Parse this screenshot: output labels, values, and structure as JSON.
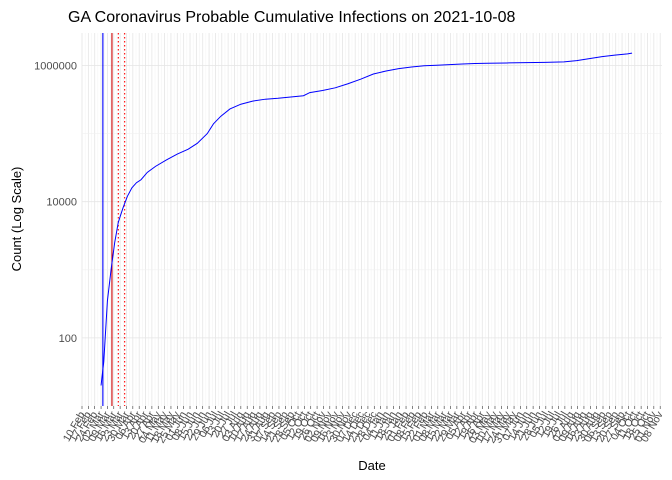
{
  "chart_data": {
    "type": "line",
    "title": "GA Coronavirus Probable Cumulative Infections on 2021-10-08",
    "xlabel": "Date",
    "ylabel": "Count (Log Scale)",
    "y_scale": "log10",
    "y_ticks": [
      100,
      10000,
      1000000
    ],
    "y_tick_labels": [
      "100",
      "10000",
      "1000000"
    ],
    "ylim": [
      10,
      3000000
    ],
    "xlim": [
      "2020-02-10",
      "2021-11-10"
    ],
    "x_ticks": [
      "2020-02-10",
      "2020-02-17",
      "2020-02-24",
      "2020-03-02",
      "2020-03-09",
      "2020-03-16",
      "2020-03-23",
      "2020-03-30",
      "2020-04-06",
      "2020-04-13",
      "2020-04-20",
      "2020-04-27",
      "2020-05-04",
      "2020-05-11",
      "2020-05-18",
      "2020-05-25",
      "2020-06-01",
      "2020-06-08",
      "2020-06-15",
      "2020-06-22",
      "2020-06-29",
      "2020-07-06",
      "2020-07-13",
      "2020-07-20",
      "2020-07-27",
      "2020-08-03",
      "2020-08-10",
      "2020-08-17",
      "2020-08-24",
      "2020-08-31",
      "2020-09-07",
      "2020-09-14",
      "2020-09-21",
      "2020-09-28",
      "2020-10-05",
      "2020-10-12",
      "2020-10-19",
      "2020-10-26",
      "2020-11-02",
      "2020-11-09",
      "2020-11-16",
      "2020-11-23",
      "2020-11-30",
      "2020-12-07",
      "2020-12-14",
      "2020-12-21",
      "2020-12-28",
      "2021-01-04",
      "2021-01-11",
      "2021-01-18",
      "2021-01-25",
      "2021-02-01",
      "2021-02-08",
      "2021-02-15",
      "2021-02-22",
      "2021-03-01",
      "2021-03-08",
      "2021-03-15",
      "2021-03-22",
      "2021-03-29",
      "2021-04-05",
      "2021-04-12",
      "2021-04-19",
      "2021-04-26",
      "2021-05-03",
      "2021-05-10",
      "2021-05-17",
      "2021-05-24",
      "2021-05-31",
      "2021-06-07",
      "2021-06-14",
      "2021-06-21",
      "2021-06-28",
      "2021-07-05",
      "2021-07-12",
      "2021-07-19",
      "2021-07-26",
      "2021-08-02",
      "2021-08-09",
      "2021-08-16",
      "2021-08-23",
      "2021-08-30",
      "2021-09-06",
      "2021-09-13",
      "2021-09-20",
      "2021-09-27",
      "2021-10-04",
      "2021-10-11",
      "2021-10-18",
      "2021-10-25",
      "2021-11-01",
      "2021-11-08"
    ],
    "x_tick_labels": [
      "10 Feb",
      "17 Feb",
      "24 Feb",
      "02 Mar",
      "09 Mar",
      "16 Mar",
      "23 Mar",
      "30 Mar",
      "06 Apr",
      "13 Apr",
      "20 Apr",
      "27 Apr",
      "04 May",
      "11 May",
      "18 May",
      "25 May",
      "01 Jun",
      "08 Jun",
      "15 Jun",
      "22 Jun",
      "29 Jun",
      "06 Jul",
      "13 Jul",
      "20 Jul",
      "27 Jul",
      "03 Aug",
      "10 Aug",
      "17 Aug",
      "24 Aug",
      "31 Aug",
      "07 Sep",
      "14 Sep",
      "21 Sep",
      "28 Sep",
      "05 Oct",
      "12 Oct",
      "19 Oct",
      "26 Oct",
      "02 Nov",
      "09 Nov",
      "16 Nov",
      "23 Nov",
      "30 Nov",
      "07 Dec",
      "14 Dec",
      "21 Dec",
      "28 Dec",
      "04 Jan",
      "11 Jan",
      "18 Jan",
      "25 Jan",
      "01 Feb",
      "08 Feb",
      "15 Feb",
      "22 Feb",
      "01 Mar",
      "08 Mar",
      "15 Mar",
      "22 Mar",
      "29 Mar",
      "05 Apr",
      "12 Apr",
      "19 Apr",
      "26 Apr",
      "03 May",
      "10 May",
      "17 May",
      "24 May",
      "31 May",
      "07 Jun",
      "14 Jun",
      "21 Jun",
      "28 Jun",
      "05 Jul",
      "12 Jul",
      "19 Jul",
      "26 Jul",
      "02 Aug",
      "09 Aug",
      "16 Aug",
      "23 Aug",
      "30 Aug",
      "06 Sep",
      "13 Sep",
      "20 Sep",
      "27 Sep",
      "04 Oct",
      "11 Oct",
      "18 Oct",
      "25 Oct",
      "01 Nov",
      "08 Nov"
    ],
    "series": [
      {
        "color": "#0000ff",
        "points": [
          [
            "2020-03-02",
            20
          ],
          [
            "2020-03-05",
            45
          ],
          [
            "2020-03-09",
            350
          ],
          [
            "2020-03-13",
            1000
          ],
          [
            "2020-03-17",
            2500
          ],
          [
            "2020-03-21",
            5000
          ],
          [
            "2020-03-26",
            8000
          ],
          [
            "2020-03-31",
            12000
          ],
          [
            "2020-04-05",
            16000
          ],
          [
            "2020-04-10",
            19000
          ],
          [
            "2020-04-15",
            21000
          ],
          [
            "2020-04-22",
            27000
          ],
          [
            "2020-05-01",
            33000
          ],
          [
            "2020-05-13",
            41000
          ],
          [
            "2020-05-25",
            50000
          ],
          [
            "2020-06-06",
            59000
          ],
          [
            "2020-06-16",
            72000
          ],
          [
            "2020-06-27",
            100000
          ],
          [
            "2020-07-04",
            140000
          ],
          [
            "2020-07-12",
            180000
          ],
          [
            "2020-07-22",
            230000
          ],
          [
            "2020-08-03",
            270000
          ],
          [
            "2020-08-16",
            300000
          ],
          [
            "2020-08-30",
            320000
          ],
          [
            "2020-09-13",
            330000
          ],
          [
            "2020-09-27",
            345000
          ],
          [
            "2020-10-11",
            360000
          ],
          [
            "2020-10-18",
            400000
          ],
          [
            "2020-11-01",
            430000
          ],
          [
            "2020-11-15",
            470000
          ],
          [
            "2020-11-29",
            540000
          ],
          [
            "2020-12-13",
            630000
          ],
          [
            "2020-12-27",
            750000
          ],
          [
            "2021-01-10",
            830000
          ],
          [
            "2021-01-24",
            900000
          ],
          [
            "2021-02-07",
            950000
          ],
          [
            "2021-02-21",
            990000
          ],
          [
            "2021-03-07",
            1010000
          ],
          [
            "2021-03-21",
            1030000
          ],
          [
            "2021-04-04",
            1050000
          ],
          [
            "2021-04-18",
            1070000
          ],
          [
            "2021-05-02",
            1080000
          ],
          [
            "2021-05-23",
            1090000
          ],
          [
            "2021-06-13",
            1100000
          ],
          [
            "2021-07-04",
            1110000
          ],
          [
            "2021-07-25",
            1130000
          ],
          [
            "2021-08-08",
            1180000
          ],
          [
            "2021-08-22",
            1260000
          ],
          [
            "2021-09-05",
            1350000
          ],
          [
            "2021-09-19",
            1420000
          ],
          [
            "2021-10-03",
            1480000
          ],
          [
            "2021-10-08",
            1520000
          ]
        ]
      }
    ],
    "reference_lines": [
      {
        "x": "2020-03-04",
        "color": "#0000ff",
        "style": "solid"
      },
      {
        "x": "2020-03-14",
        "color": "#cc0000",
        "style": "solid"
      },
      {
        "x": "2020-03-21",
        "color": "#ff0000",
        "style": "dotted"
      },
      {
        "x": "2020-03-28",
        "color": "#ff0000",
        "style": "dotted"
      }
    ],
    "grid": true
  }
}
